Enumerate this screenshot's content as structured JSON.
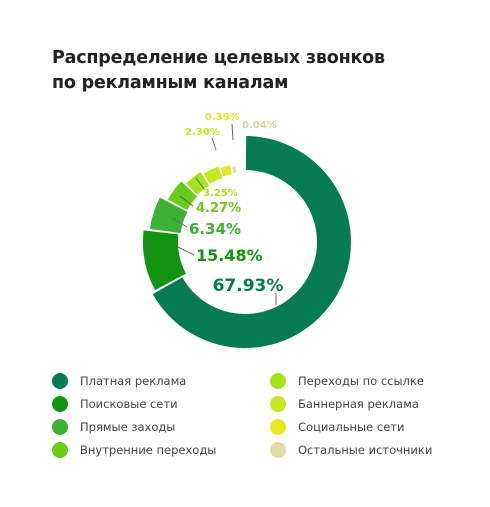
{
  "title_line1": "Распределение целевых звонков",
  "title_line2": "по рекламным каналам",
  "chart_data": {
    "type": "pie",
    "variant": "donut",
    "title": "Распределение целевых звонков по рекламным каналам",
    "legend_position": "bottom",
    "series": [
      {
        "name": "Платная реклама",
        "value": 67.93,
        "label": "67.93%",
        "color": "#057b54"
      },
      {
        "name": "Поисковые сети",
        "value": 15.48,
        "label": "15.48%",
        "color": "#139411"
      },
      {
        "name": "Прямые заходы",
        "value": 6.34,
        "label": "6.34%",
        "color": "#3cb132"
      },
      {
        "name": "Внутренние переходы",
        "value": 4.27,
        "label": "4.27%",
        "color": "#6acb18"
      },
      {
        "name": "Переходы по ссылке",
        "value": 3.25,
        "label": "3.25%",
        "color": "#a5e31f"
      },
      {
        "name": "Баннерная реклама",
        "value": 2.3,
        "label": "2.30%",
        "color": "#c3e81f"
      },
      {
        "name": "Социальные сети",
        "value": 0.39,
        "label": "0.39%",
        "color": "#e4e81d"
      },
      {
        "name": "Остальные источники",
        "value": 0.04,
        "label": "0.04%",
        "color": "#e0dca3"
      }
    ]
  }
}
